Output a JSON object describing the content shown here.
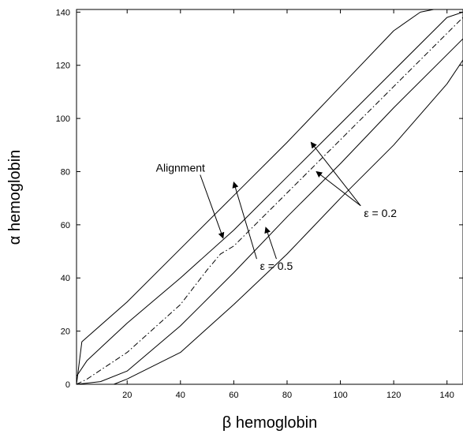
{
  "chart_data": {
    "type": "line",
    "title": "",
    "xlabel": "β hemoglobin",
    "ylabel": "α hemoglobin",
    "xlim": [
      1,
      146
    ],
    "ylim": [
      0,
      141
    ],
    "xticks": [
      20,
      40,
      60,
      80,
      100,
      120,
      140
    ],
    "yticks": [
      0,
      20,
      40,
      60,
      80,
      100,
      120,
      140
    ],
    "grid": false,
    "series": [
      {
        "style": "dashdot",
        "x": [
          1,
          5,
          20,
          40,
          50,
          55,
          60,
          80,
          100,
          120,
          140,
          146
        ],
        "y": [
          0,
          2,
          12,
          30,
          43,
          49,
          52,
          72,
          92,
          112,
          132,
          138
        ]
      },
      {
        "style": "solid",
        "x": [
          1,
          5,
          20,
          40,
          60,
          80,
          100,
          120,
          140,
          146
        ],
        "y": [
          3,
          9,
          23,
          40,
          58,
          78,
          98,
          118,
          138,
          140
        ]
      },
      {
        "style": "solid",
        "x": [
          1,
          10,
          20,
          40,
          60,
          80,
          100,
          120,
          140,
          146
        ],
        "y": [
          0,
          1,
          5,
          22,
          42,
          63,
          83,
          104,
          124,
          130
        ]
      },
      {
        "style": "solid",
        "x": [
          1,
          3,
          20,
          40,
          60,
          80,
          100,
          120,
          130,
          135,
          146
        ],
        "y": [
          0,
          16,
          31,
          51,
          71,
          91,
          112,
          133,
          140,
          141,
          141
        ]
      },
      {
        "style": "solid",
        "x": [
          1,
          15,
          20,
          40,
          60,
          80,
          100,
          120,
          140,
          146
        ],
        "y": [
          0,
          0,
          2,
          12,
          30,
          49,
          70,
          90,
          113,
          122
        ]
      }
    ],
    "annotations": [
      {
        "text": "Alignment",
        "pos": [
          40,
          80
        ],
        "arrow_to": [
          [
            56,
            55
          ]
        ]
      },
      {
        "text": "ε = 0.2",
        "pos": [
          115,
          63
        ],
        "arrow_to": [
          [
            89,
            91
          ],
          [
            91,
            80
          ]
        ]
      },
      {
        "text": "ε = 0.5",
        "pos": [
          76,
          43
        ],
        "arrow_to": [
          [
            60,
            76
          ],
          [
            72,
            59
          ]
        ]
      }
    ]
  }
}
